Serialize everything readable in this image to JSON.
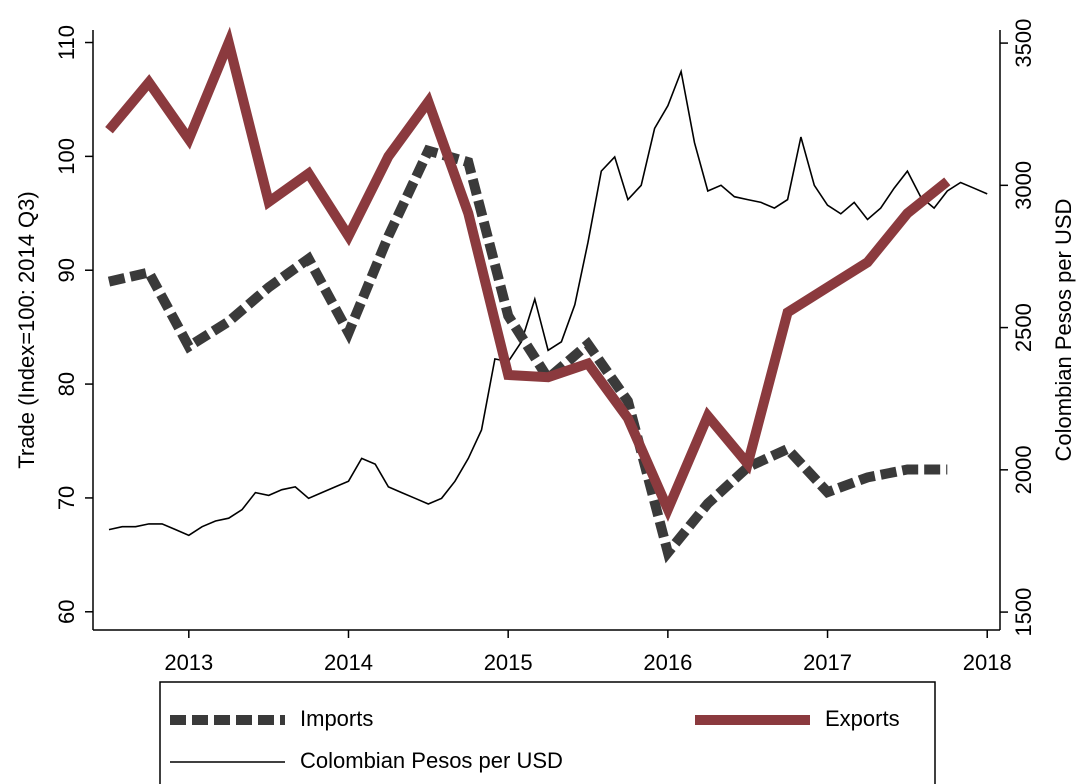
{
  "chart_data": {
    "type": "line",
    "y_label": "Trade (Index=100: 2014 Q3)",
    "y2_label": "Colombian Pesos per USD",
    "xlim": [
      2012.4,
      2018.08
    ],
    "xticks": [
      2013,
      2014,
      2015,
      2016,
      2017,
      2018
    ],
    "ylim": [
      58.4,
      111.1
    ],
    "yticks": [
      60,
      70,
      80,
      90,
      100,
      110
    ],
    "y2lim": [
      1437,
      3546
    ],
    "y2ticks": [
      1500,
      2000,
      2500,
      3000,
      3500
    ],
    "legend": "bottom",
    "series": [
      {
        "name": "Imports",
        "color": "#3a3a3a",
        "style": "dashed",
        "x": [
          2012.5,
          2012.75,
          2013,
          2013.25,
          2013.5,
          2013.75,
          2014,
          2014.25,
          2014.5,
          2014.75,
          2015,
          2015.25,
          2015.5,
          2015.75,
          2016,
          2016.25,
          2016.5,
          2016.75,
          2017,
          2017.25,
          2017.5,
          2017.75
        ],
        "values": [
          89,
          89.8,
          83.3,
          85.5,
          88.5,
          91,
          84.5,
          93,
          100.5,
          99.5,
          86,
          80.5,
          83.5,
          78.5,
          65.2,
          69.5,
          72.7,
          74.3,
          70.5,
          71.8,
          72.5,
          72.5
        ]
      },
      {
        "name": "Exports",
        "color": "#8b3a3e",
        "style": "solid-thick",
        "x": [
          2012.5,
          2012.75,
          2013,
          2013.25,
          2013.5,
          2013.75,
          2014,
          2014.25,
          2014.5,
          2014.75,
          2015,
          2015.25,
          2015.5,
          2015.75,
          2016,
          2016.25,
          2016.5,
          2016.75,
          2017,
          2017.25,
          2017.5,
          2017.75
        ],
        "values": [
          102.3,
          106.5,
          101.5,
          110,
          96,
          98.5,
          93,
          100,
          104.8,
          95,
          80.8,
          80.6,
          81.8,
          77,
          69,
          77.2,
          73,
          86.3,
          88.5,
          90.7,
          95,
          97.8
        ]
      },
      {
        "name": "Colombian Pesos per USD",
        "color": "#000000",
        "style": "thin",
        "axis": "y2",
        "x": [
          2012.5,
          2012.583,
          2012.667,
          2012.75,
          2012.833,
          2012.917,
          2013,
          2013.083,
          2013.167,
          2013.25,
          2013.333,
          2013.417,
          2013.5,
          2013.583,
          2013.667,
          2013.75,
          2013.833,
          2013.917,
          2014,
          2014.083,
          2014.167,
          2014.25,
          2014.333,
          2014.417,
          2014.5,
          2014.583,
          2014.667,
          2014.75,
          2014.833,
          2014.917,
          2015,
          2015.083,
          2015.167,
          2015.25,
          2015.333,
          2015.417,
          2015.5,
          2015.583,
          2015.667,
          2015.75,
          2015.833,
          2015.917,
          2016,
          2016.083,
          2016.167,
          2016.25,
          2016.333,
          2016.417,
          2016.5,
          2016.583,
          2016.667,
          2016.75,
          2016.833,
          2016.917,
          2017,
          2017.083,
          2017.167,
          2017.25,
          2017.333,
          2017.417,
          2017.5,
          2017.583,
          2017.667,
          2017.75,
          2017.833,
          2017.917,
          2018
        ],
        "values": [
          1790,
          1800,
          1800,
          1810,
          1810,
          1790,
          1770,
          1800,
          1820,
          1830,
          1860,
          1920,
          1910,
          1930,
          1940,
          1900,
          1920,
          1940,
          1960,
          2040,
          2020,
          1940,
          1920,
          1900,
          1880,
          1900,
          1960,
          2040,
          2140,
          2390,
          2380,
          2450,
          2600,
          2420,
          2450,
          2580,
          2800,
          3050,
          3100,
          2950,
          3000,
          3200,
          3280,
          3400,
          3150,
          2980,
          3000,
          2960,
          2950,
          2940,
          2920,
          2950,
          3170,
          3000,
          2930,
          2900,
          2940,
          2880,
          2920,
          2990,
          3050,
          2960,
          2920,
          2980,
          3010,
          2990,
          2970
        ]
      }
    ]
  }
}
